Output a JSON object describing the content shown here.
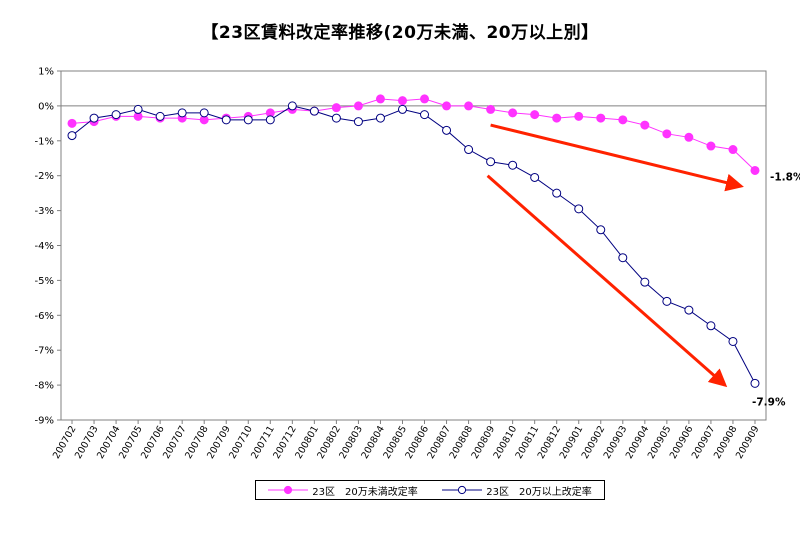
{
  "chart_data": {
    "type": "line",
    "title": "【23区賃料改定率推移(20万未満、20万以上別】",
    "x": [
      "200702",
      "200703",
      "200704",
      "200705",
      "200706",
      "200707",
      "200708",
      "200709",
      "200710",
      "200711",
      "200712",
      "200801",
      "200802",
      "200803",
      "200804",
      "200805",
      "200806",
      "200807",
      "200808",
      "200809",
      "200810",
      "200811",
      "200812",
      "200901",
      "200902",
      "200903",
      "200904",
      "200905",
      "200906",
      "200907",
      "200908",
      "200909"
    ],
    "y_ticks": [
      "1%",
      "0%",
      "-1%",
      "-2%",
      "-3%",
      "-4%",
      "-5%",
      "-6%",
      "-7%",
      "-8%",
      "-9%"
    ],
    "ylim": [
      -9,
      1
    ],
    "series": [
      {
        "name": "23区　20万未満改定率",
        "color": "#ff33ff",
        "marker": "filled-circle",
        "values": [
          -0.5,
          -0.45,
          -0.3,
          -0.3,
          -0.35,
          -0.35,
          -0.4,
          -0.35,
          -0.3,
          -0.2,
          -0.1,
          -0.15,
          -0.05,
          0.0,
          0.2,
          0.15,
          0.2,
          0.0,
          0.0,
          -0.1,
          -0.2,
          -0.25,
          -0.35,
          -0.3,
          -0.35,
          -0.4,
          -0.55,
          -0.8,
          -0.9,
          -1.15,
          -1.25,
          -1.85
        ]
      },
      {
        "name": "23区　20万以上改定率",
        "color": "#000080",
        "marker": "open-circle",
        "values": [
          -0.85,
          -0.35,
          -0.25,
          -0.1,
          -0.3,
          -0.2,
          -0.2,
          -0.4,
          -0.4,
          -0.4,
          0.0,
          -0.15,
          -0.35,
          -0.45,
          -0.35,
          -0.1,
          -0.25,
          -0.7,
          -1.25,
          -1.6,
          -1.7,
          -2.05,
          -2.5,
          -2.95,
          -3.55,
          -4.35,
          -5.05,
          -5.6,
          -5.85,
          -6.3,
          -6.75,
          -7.95
        ]
      }
    ],
    "annotations": [
      {
        "text": "-1.8%",
        "series": 0
      },
      {
        "text": "-7.9%",
        "series": 1
      }
    ],
    "arrow_color": "#ff2200",
    "grid": false,
    "legend": "bottom"
  }
}
